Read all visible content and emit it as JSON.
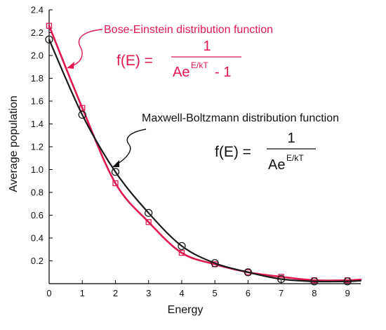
{
  "chart_data": {
    "type": "line",
    "xlabel": "Energy",
    "ylabel": "Average population",
    "xlim": [
      0,
      9.4
    ],
    "ylim": [
      0,
      2.4
    ],
    "x_ticks": [
      0,
      1,
      2,
      3,
      4,
      5,
      6,
      7,
      8,
      9
    ],
    "y_ticks": [
      0.2,
      0.4,
      0.6,
      0.8,
      1.0,
      1.2,
      1.4,
      1.6,
      1.8,
      2.0,
      2.2,
      2.4
    ],
    "y_tick_labels": [
      "0.2",
      "0.4",
      "0.6",
      "0.8",
      "1.0",
      "1.2",
      "1.4",
      "1.6",
      "1.8",
      "2.0",
      "2.2",
      "2.4"
    ],
    "grid": false,
    "series": [
      {
        "name": "Bose-Einstein distribution function",
        "color": "#e0184f",
        "marker": "square",
        "x": [
          0,
          1,
          2,
          3,
          4,
          5,
          6,
          7,
          8,
          9
        ],
        "y": [
          2.26,
          1.54,
          0.88,
          0.54,
          0.27,
          0.17,
          0.1,
          0.06,
          0.03,
          0.03
        ]
      },
      {
        "name": "Maxwell-Boltzmann distribution function",
        "color": "#1a1a1a",
        "marker": "circle",
        "x": [
          0,
          1,
          2,
          3,
          4,
          5,
          6,
          7,
          8,
          9
        ],
        "y": [
          2.14,
          1.48,
          0.98,
          0.62,
          0.33,
          0.18,
          0.1,
          0.04,
          0.02,
          0.02
        ]
      }
    ],
    "annotations": {
      "be_label": "Bose-Einstein distribution function",
      "be_formula_lhs": "f(E) =",
      "be_formula_num": "1",
      "be_formula_den_base": "Ae",
      "be_formula_den_exp": "E/kT",
      "be_formula_den_tail": "- 1",
      "mb_label": "Maxwell-Boltzmann distribution function",
      "mb_formula_lhs": "f(E) =",
      "mb_formula_num": "1",
      "mb_formula_den_base": "Ae",
      "mb_formula_den_exp": "E/kT"
    }
  }
}
